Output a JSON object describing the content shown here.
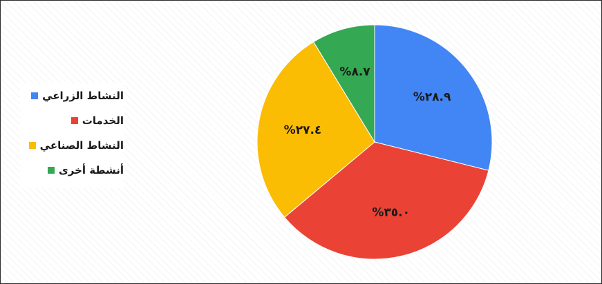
{
  "chart_data": {
    "type": "pie",
    "title": "",
    "slices": [
      {
        "label": "النشاط الزراعي",
        "value": 28.9,
        "display": "%٢٨.٩",
        "color": "#4285F4"
      },
      {
        "label": "الخدمات",
        "value": 35.0,
        "display": "%٣٥.٠",
        "color": "#EA4335"
      },
      {
        "label": "النشاط الصناعي",
        "value": 27.4,
        "display": "%٢٧.٤",
        "color": "#FBBC04"
      },
      {
        "label": "أنشطة أخرى",
        "value": 8.7,
        "display": "%٨.٧",
        "color": "#34A853"
      }
    ],
    "start_angle": "12 o'clock",
    "direction": "clockwise",
    "legend_position": "left"
  }
}
